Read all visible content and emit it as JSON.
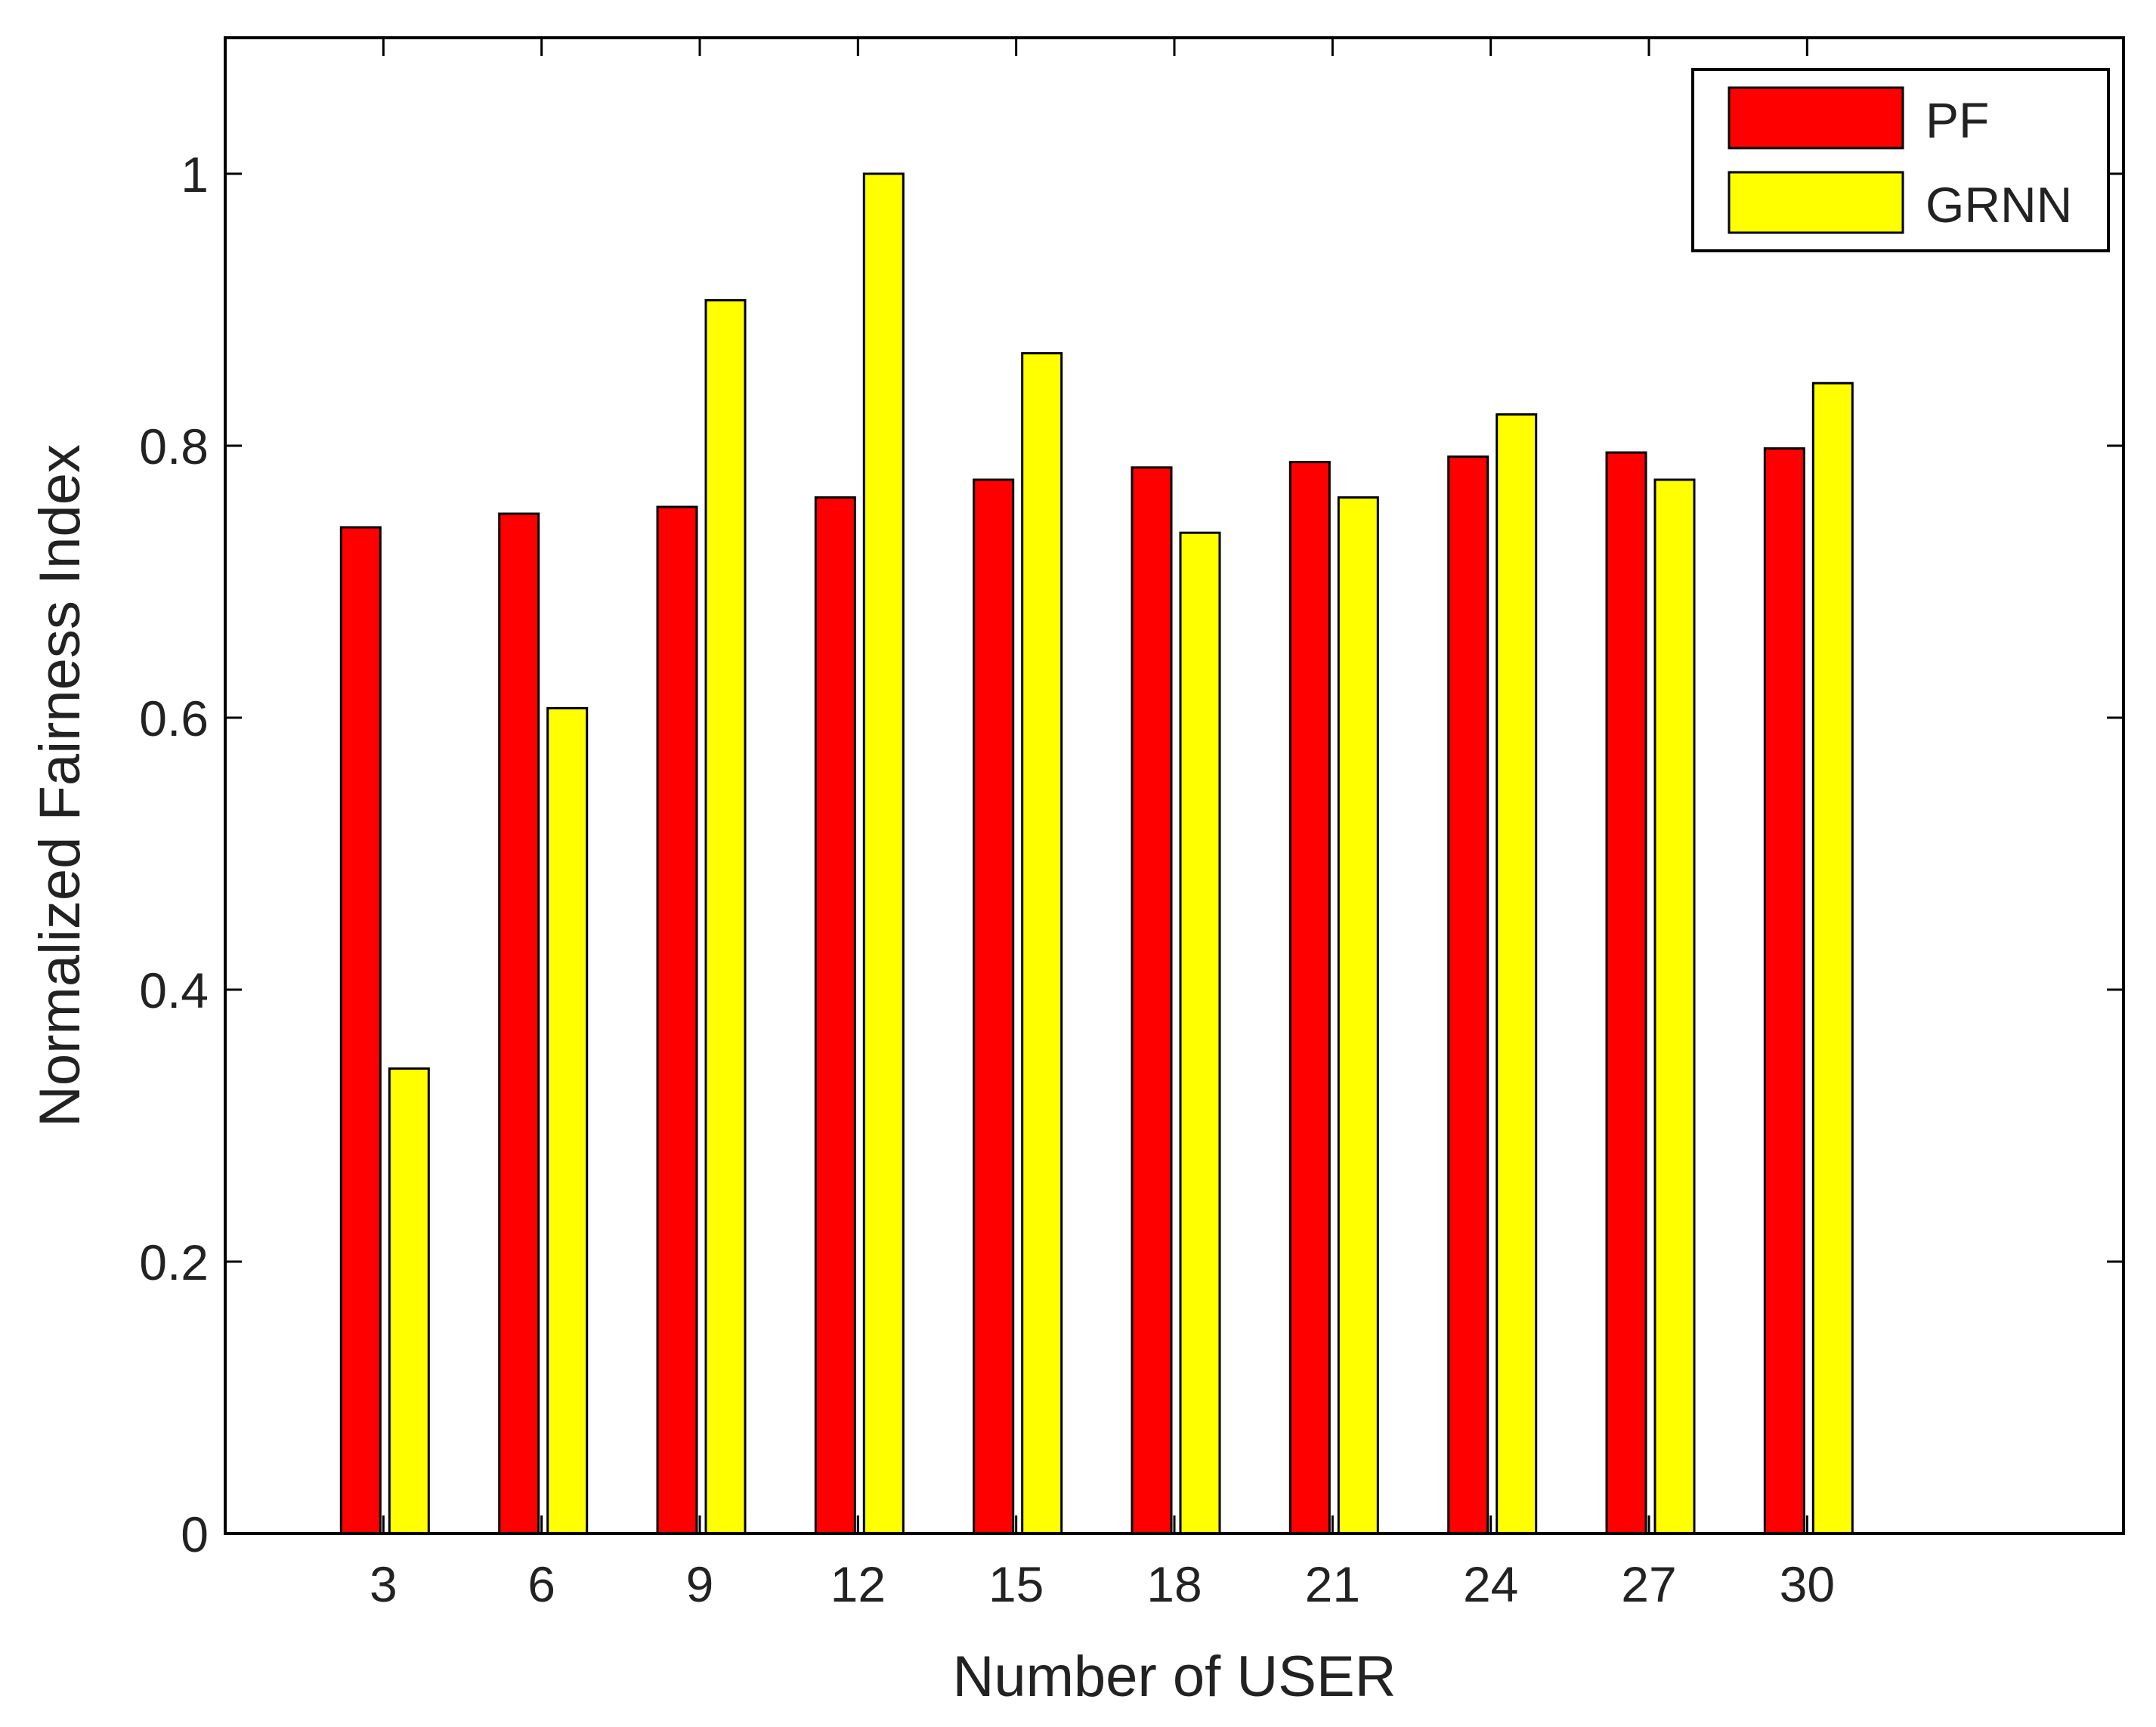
{
  "chart_data": {
    "type": "bar",
    "xlabel": "Number of USER",
    "ylabel": "Normalized Fairness Index",
    "categories": [
      "3",
      "6",
      "9",
      "12",
      "15",
      "18",
      "21",
      "24",
      "27",
      "30"
    ],
    "series": [
      {
        "name": "PF",
        "color": "#ff0000",
        "values": [
          0.74,
          0.75,
          0.755,
          0.762,
          0.775,
          0.784,
          0.788,
          0.792,
          0.795,
          0.798
        ]
      },
      {
        "name": "GRNN",
        "color": "#ffff00",
        "values": [
          0.342,
          0.607,
          0.907,
          1.0,
          0.868,
          0.736,
          0.762,
          0.823,
          0.775,
          0.846
        ]
      }
    ],
    "ylim": [
      0,
      1.1
    ],
    "yticks": [
      0,
      0.2,
      0.4,
      0.6,
      0.8,
      1
    ],
    "ytick_labels": [
      "0",
      "0.2",
      "0.4",
      "0.6",
      "0.8",
      "1"
    ],
    "xlim": [
      0,
      36
    ],
    "legend": "top-right",
    "grid": false
  }
}
